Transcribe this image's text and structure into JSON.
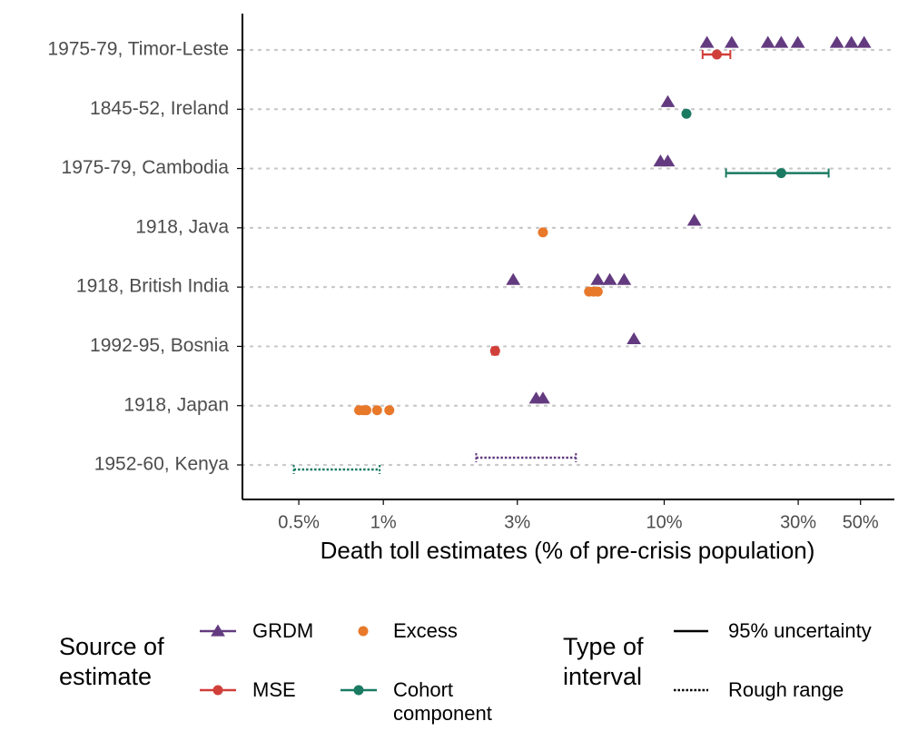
{
  "chart_data": {
    "type": "dot",
    "x_label": "Death toll estimates (% of pre-crisis population)",
    "xscale": "log",
    "xlim": [
      0.315,
      66
    ],
    "xticks": [
      {
        "value": 0.5,
        "label": "0.5%"
      },
      {
        "value": 1,
        "label": "1%"
      },
      {
        "value": 3,
        "label": "3%"
      },
      {
        "value": 10,
        "label": "10%"
      },
      {
        "value": 30,
        "label": "30%"
      },
      {
        "value": 50,
        "label": "50%"
      }
    ],
    "grid": true,
    "categories": [
      "1975-79, Timor-Leste",
      "1845-52, Ireland",
      "1975-79, Cambodia",
      "1918, Java",
      "1918, British India",
      "1992-95, Bosnia",
      "1918, Japan",
      "1952-60, Kenya"
    ],
    "legend_title": "Source of estimate",
    "series": [
      {
        "name": "GRDM",
        "color": "#633a7f",
        "marker": "triangle",
        "values": [
          [
            14.2,
            17.4,
            23.4,
            26.1,
            29.9,
            41.2,
            46.4,
            51.5
          ],
          [
            10.3
          ],
          [
            9.7,
            10.3
          ],
          [
            12.8
          ],
          [
            2.9,
            5.8,
            6.4,
            7.2
          ],
          [
            7.8
          ],
          [
            3.5,
            3.7
          ],
          null
        ],
        "rough_ranges": [
          null,
          null,
          null,
          null,
          null,
          null,
          null,
          [
            2.14,
            4.85
          ]
        ]
      },
      {
        "name": "Excess",
        "color": "#e8782a",
        "marker": "circle",
        "values": [
          null,
          null,
          null,
          [
            3.7
          ],
          [
            5.4,
            5.6,
            5.8
          ],
          null,
          [
            0.82,
            0.85,
            0.87,
            0.95,
            1.05
          ],
          null
        ]
      },
      {
        "name": "MSE",
        "color": "#d13f3a",
        "marker": "circle",
        "values": [
          [
            15.4
          ],
          null,
          null,
          null,
          null,
          [
            2.5
          ],
          null,
          null
        ],
        "intervals_95": [
          [
            13.7,
            17.2
          ],
          null,
          null,
          null,
          null,
          [
            2.44,
            2.56
          ],
          null,
          null
        ]
      },
      {
        "name": "Cohort component",
        "color": "#1a7a62",
        "marker": "circle",
        "values": [
          null,
          [
            12.0
          ],
          [
            26.1
          ],
          null,
          null,
          null,
          null,
          null
        ],
        "intervals_95": [
          null,
          null,
          [
            16.6,
            38.5
          ],
          null,
          null,
          null,
          null,
          null
        ],
        "rough_ranges": [
          null,
          null,
          null,
          null,
          null,
          null,
          null,
          [
            0.48,
            0.97
          ]
        ]
      }
    ],
    "interval_legend_title": "Type of interval",
    "interval_legend": [
      {
        "name": "95% uncertainty",
        "dash": "solid"
      },
      {
        "name": "Rough range",
        "dash": "dotted"
      }
    ]
  }
}
